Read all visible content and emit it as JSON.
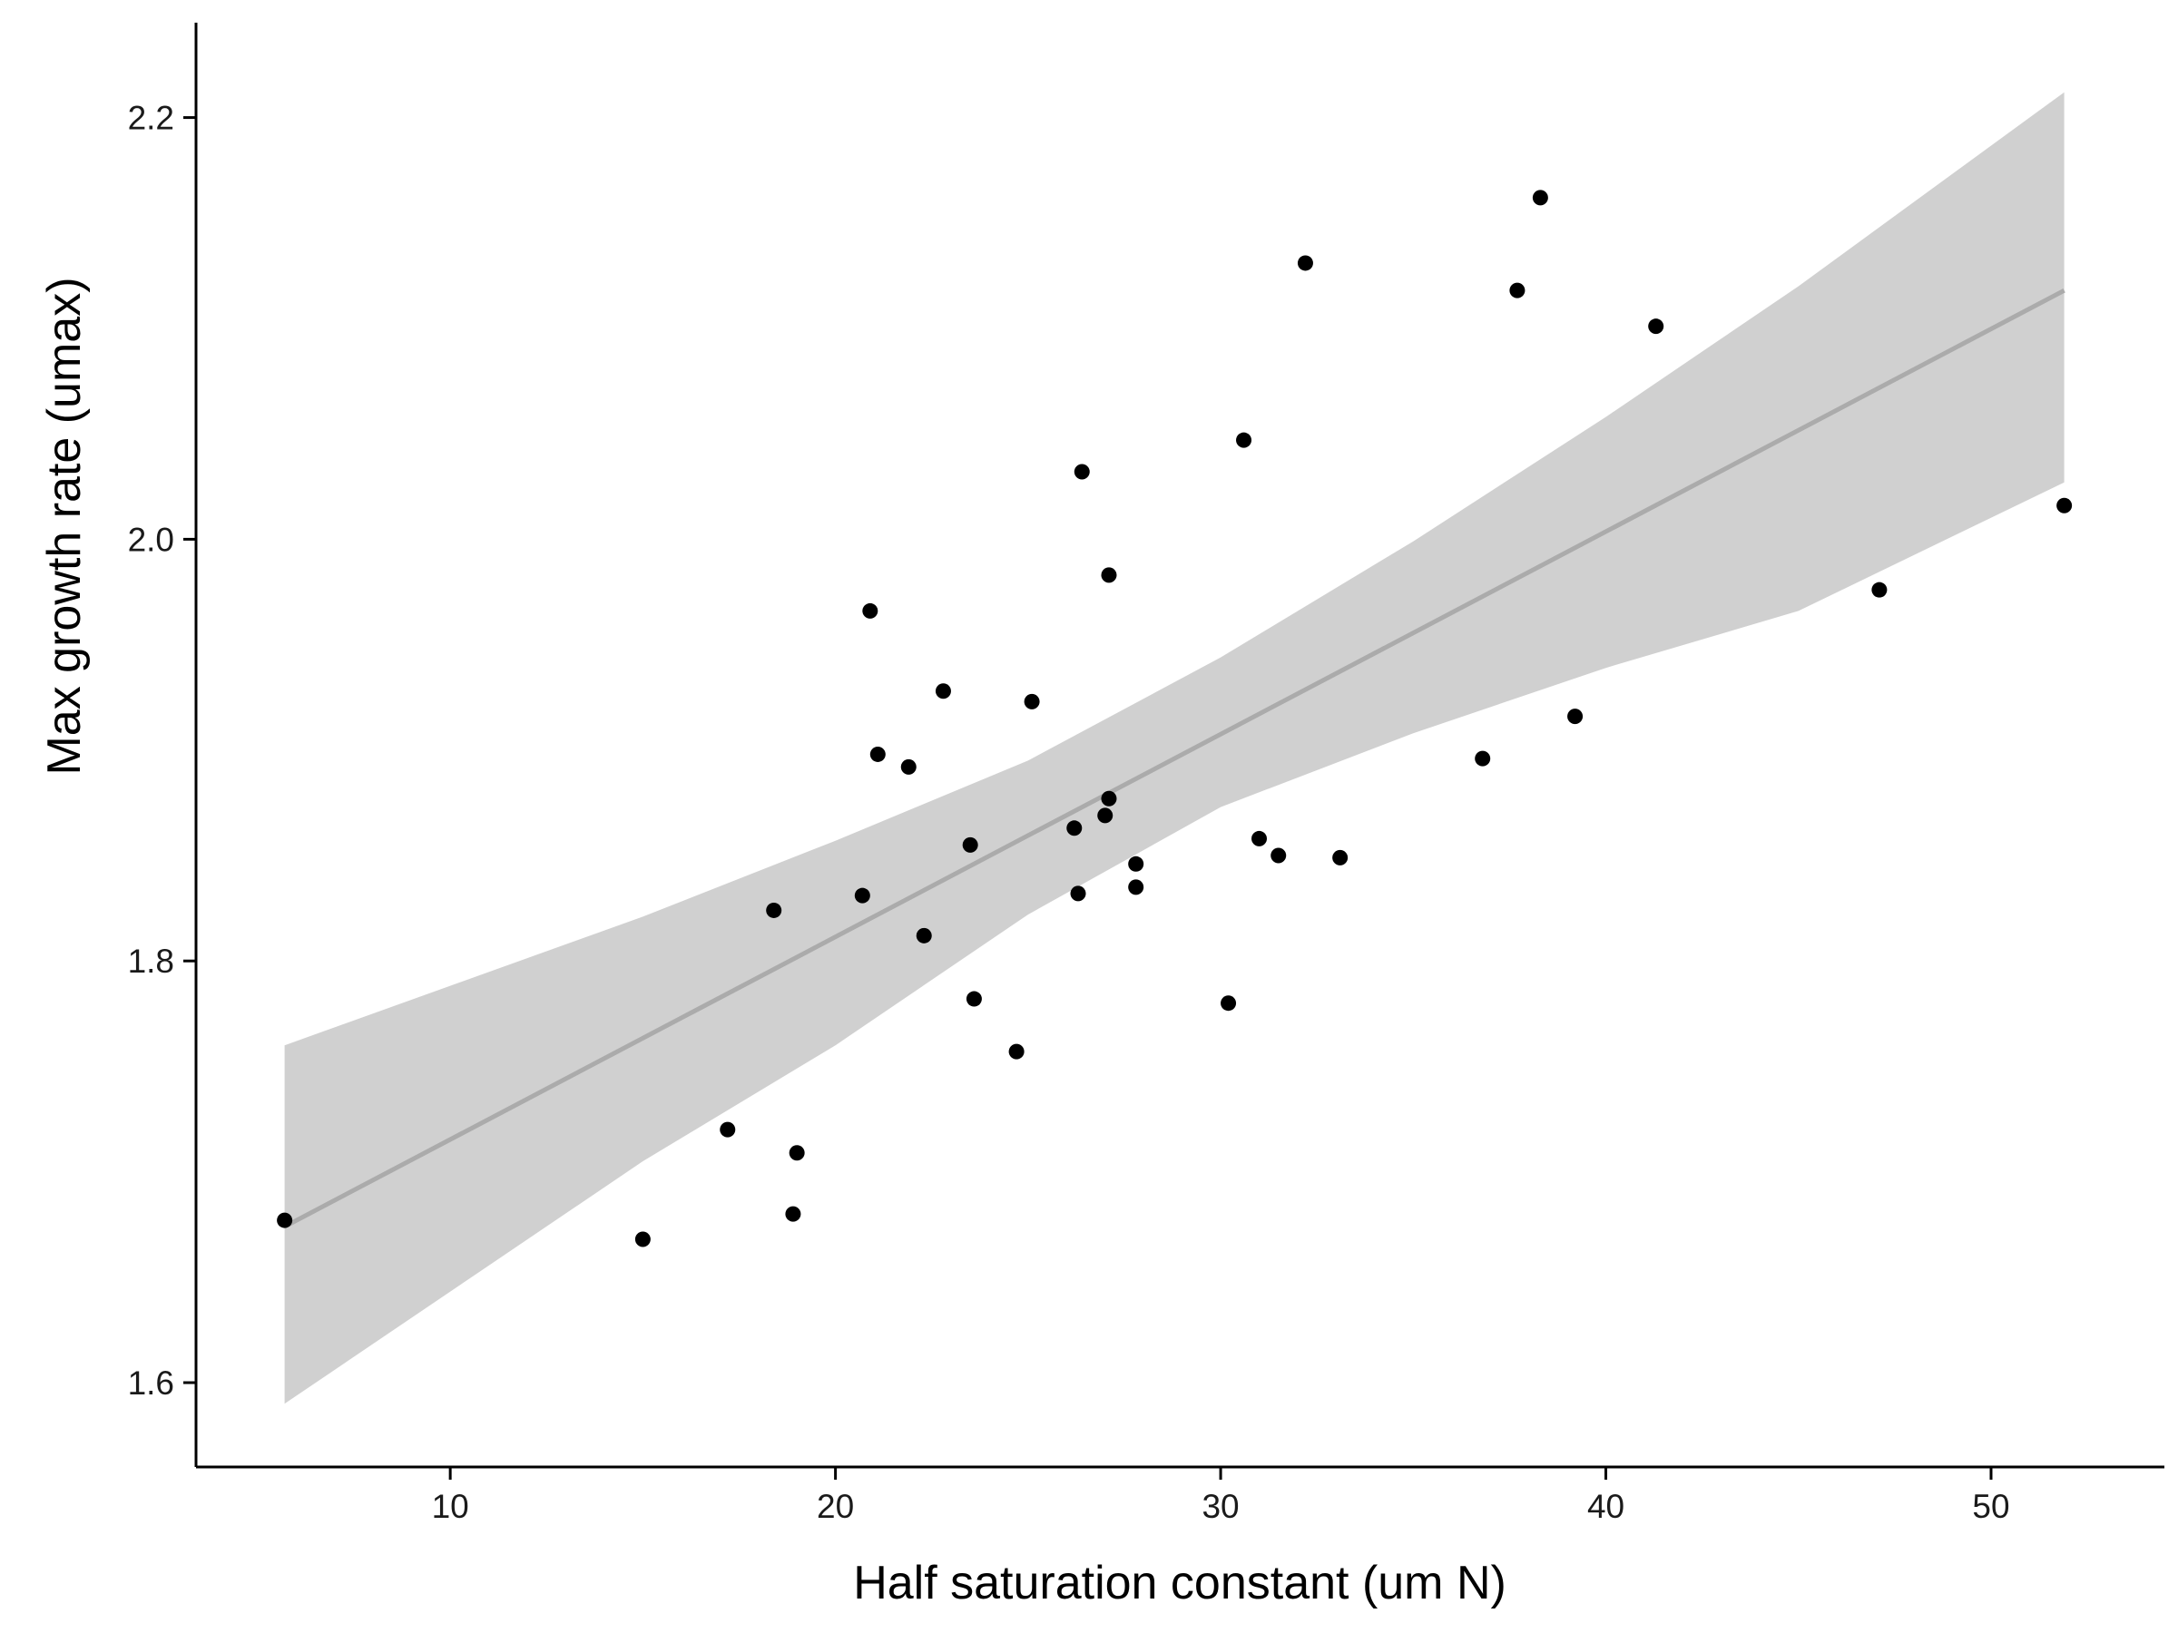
{
  "chart_data": {
    "type": "scatter",
    "xlabel": "Half saturation constant (um N)",
    "ylabel": "Max growth rate (umax)",
    "xlim": [
      3.4,
      54.5
    ],
    "ylim": [
      1.56,
      2.245
    ],
    "xticks": [
      10,
      20,
      30,
      40,
      50
    ],
    "yticks": [
      1.6,
      1.8,
      2.0,
      2.2
    ],
    "xtick_labels": [
      "10",
      "20",
      "30",
      "40",
      "50"
    ],
    "ytick_labels": [
      "1.6",
      "1.8",
      "2.0",
      "2.2"
    ],
    "grid": false,
    "legend": "none",
    "points": [
      {
        "x": 5.7,
        "y": 1.677
      },
      {
        "x": 15.0,
        "y": 1.668
      },
      {
        "x": 17.2,
        "y": 1.72
      },
      {
        "x": 18.4,
        "y": 1.824
      },
      {
        "x": 18.9,
        "y": 1.68
      },
      {
        "x": 19.0,
        "y": 1.709
      },
      {
        "x": 20.7,
        "y": 1.831
      },
      {
        "x": 20.9,
        "y": 1.966
      },
      {
        "x": 21.1,
        "y": 1.898
      },
      {
        "x": 21.9,
        "y": 1.892
      },
      {
        "x": 22.3,
        "y": 1.812
      },
      {
        "x": 22.8,
        "y": 1.928
      },
      {
        "x": 23.5,
        "y": 1.855
      },
      {
        "x": 23.6,
        "y": 1.782
      },
      {
        "x": 24.7,
        "y": 1.757
      },
      {
        "x": 25.1,
        "y": 1.923
      },
      {
        "x": 26.2,
        "y": 1.863
      },
      {
        "x": 26.3,
        "y": 1.832
      },
      {
        "x": 26.4,
        "y": 2.032
      },
      {
        "x": 27.0,
        "y": 1.869
      },
      {
        "x": 27.1,
        "y": 1.983
      },
      {
        "x": 27.1,
        "y": 1.877
      },
      {
        "x": 27.8,
        "y": 1.846
      },
      {
        "x": 27.8,
        "y": 1.835
      },
      {
        "x": 30.2,
        "y": 1.78
      },
      {
        "x": 30.6,
        "y": 2.047
      },
      {
        "x": 31.0,
        "y": 1.858
      },
      {
        "x": 31.5,
        "y": 1.85
      },
      {
        "x": 32.2,
        "y": 2.131
      },
      {
        "x": 33.1,
        "y": 1.849
      },
      {
        "x": 36.8,
        "y": 1.896
      },
      {
        "x": 37.7,
        "y": 2.118
      },
      {
        "x": 38.3,
        "y": 2.162
      },
      {
        "x": 39.2,
        "y": 1.916
      },
      {
        "x": 41.3,
        "y": 2.101
      },
      {
        "x": 47.1,
        "y": 1.976
      },
      {
        "x": 51.9,
        "y": 2.016
      }
    ],
    "fit_line": {
      "x": [
        5.7,
        51.9
      ],
      "y": [
        1.674,
        2.118
      ]
    },
    "confidence_band": {
      "x": [
        5.7,
        15.0,
        20.0,
        25.0,
        30.0,
        35.0,
        40.0,
        45.0,
        51.9
      ],
      "lower": [
        1.59,
        1.705,
        1.76,
        1.822,
        1.873,
        1.908,
        1.939,
        1.966,
        2.027
      ],
      "upper": [
        1.76,
        1.821,
        1.857,
        1.895,
        1.944,
        1.999,
        2.058,
        2.12,
        2.212
      ]
    },
    "colors": {
      "points": "#000000",
      "fit_line": "#ababab",
      "band": "#d0d0d0",
      "axes": "#000000"
    }
  }
}
